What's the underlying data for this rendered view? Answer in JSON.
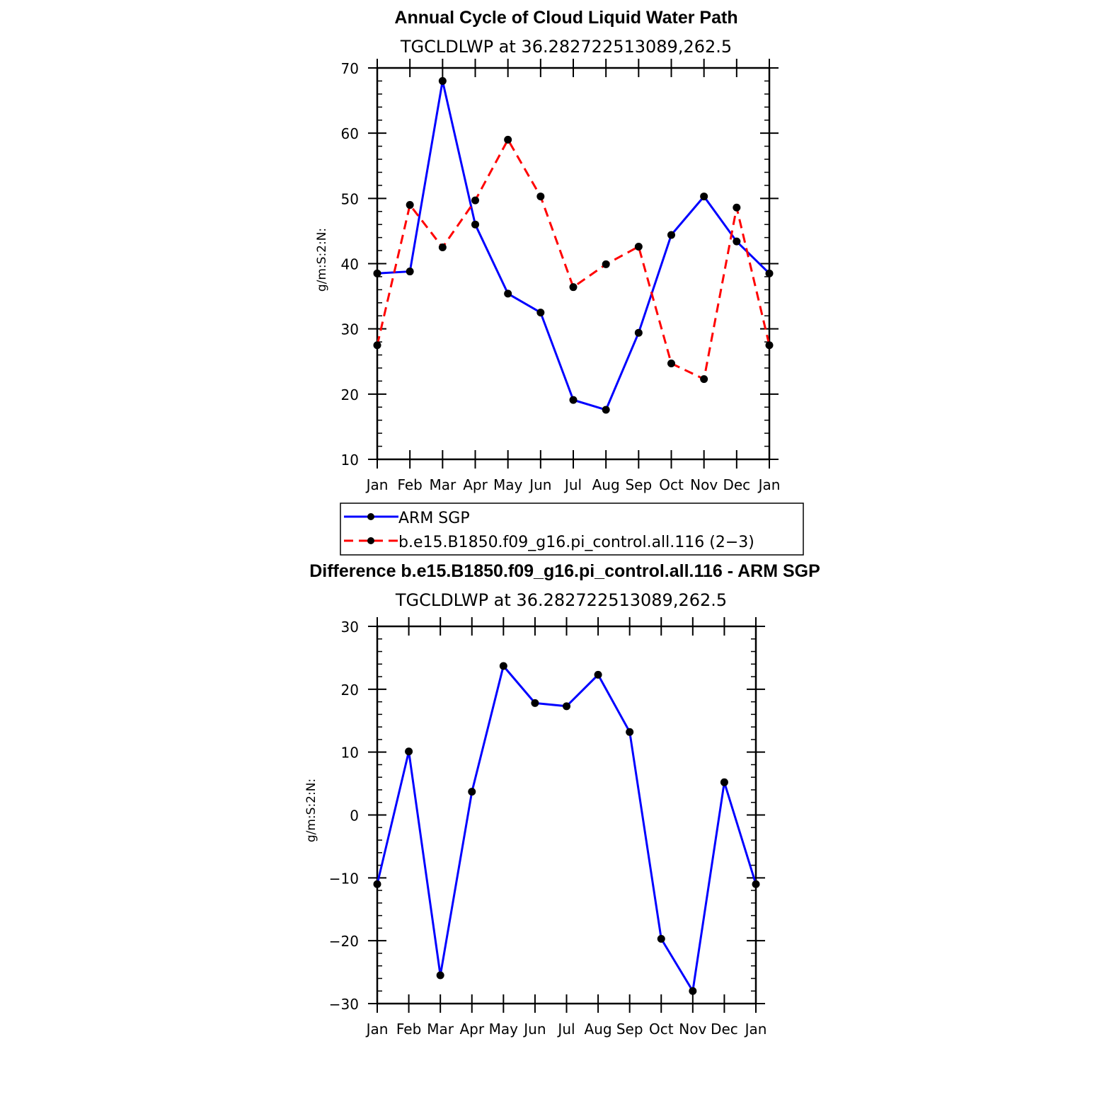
{
  "chart_data": [
    {
      "type": "line",
      "title": "Annual Cycle of Cloud Liquid Water Path",
      "subtitle": "TGCLDLWP  at  36.282722513089,262.5",
      "ylabel": "g/m:S:2:N:",
      "xlabel": "",
      "ylim": [
        10,
        70
      ],
      "yticks": [
        10,
        20,
        30,
        40,
        50,
        60,
        70
      ],
      "ytick_labels": [
        "10",
        "20",
        "30",
        "40",
        "50",
        "60",
        "70"
      ],
      "categories": [
        "Jan",
        "Feb",
        "Mar",
        "Apr",
        "May",
        "Jun",
        "Jul",
        "Aug",
        "Sep",
        "Oct",
        "Nov",
        "Dec",
        "Jan"
      ],
      "series": [
        {
          "name": "ARM  SGP",
          "color": "#0000ff",
          "dash": "solid",
          "values": [
            38.5,
            38.8,
            68.0,
            46.0,
            35.4,
            32.5,
            19.1,
            17.6,
            29.4,
            44.4,
            50.3,
            43.4,
            38.5
          ]
        },
        {
          "name": "b.e15.B1850.f09_g16.pi_control.all.116  (2−3)",
          "color": "#ff0000",
          "dash": "dashed",
          "values": [
            27.5,
            49.0,
            42.5,
            49.7,
            59.0,
            50.3,
            36.4,
            39.9,
            42.6,
            24.7,
            22.3,
            48.6,
            27.5
          ]
        }
      ],
      "legend": "below"
    },
    {
      "type": "line",
      "title": "Difference b.e15.B1850.f09_g16.pi_control.all.116 - ARM SGP",
      "subtitle": "TGCLDLWP  at  36.282722513089,262.5",
      "ylabel": "g/m:S:2:N:",
      "xlabel": "",
      "ylim": [
        -30,
        30
      ],
      "yticks": [
        -30,
        -20,
        -10,
        0,
        10,
        20,
        30
      ],
      "ytick_labels": [
        "−30",
        "−20",
        "−10",
        "0",
        "10",
        "20",
        "30"
      ],
      "categories": [
        "Jan",
        "Feb",
        "Mar",
        "Apr",
        "May",
        "Jun",
        "Jul",
        "Aug",
        "Sep",
        "Oct",
        "Nov",
        "Dec",
        "Jan"
      ],
      "series": [
        {
          "name": "Difference",
          "color": "#0000ff",
          "dash": "solid",
          "values": [
            -11.0,
            10.1,
            -25.5,
            3.7,
            23.7,
            17.8,
            17.3,
            22.3,
            13.2,
            -19.7,
            -28.0,
            5.2,
            -11.0
          ]
        }
      ]
    }
  ]
}
